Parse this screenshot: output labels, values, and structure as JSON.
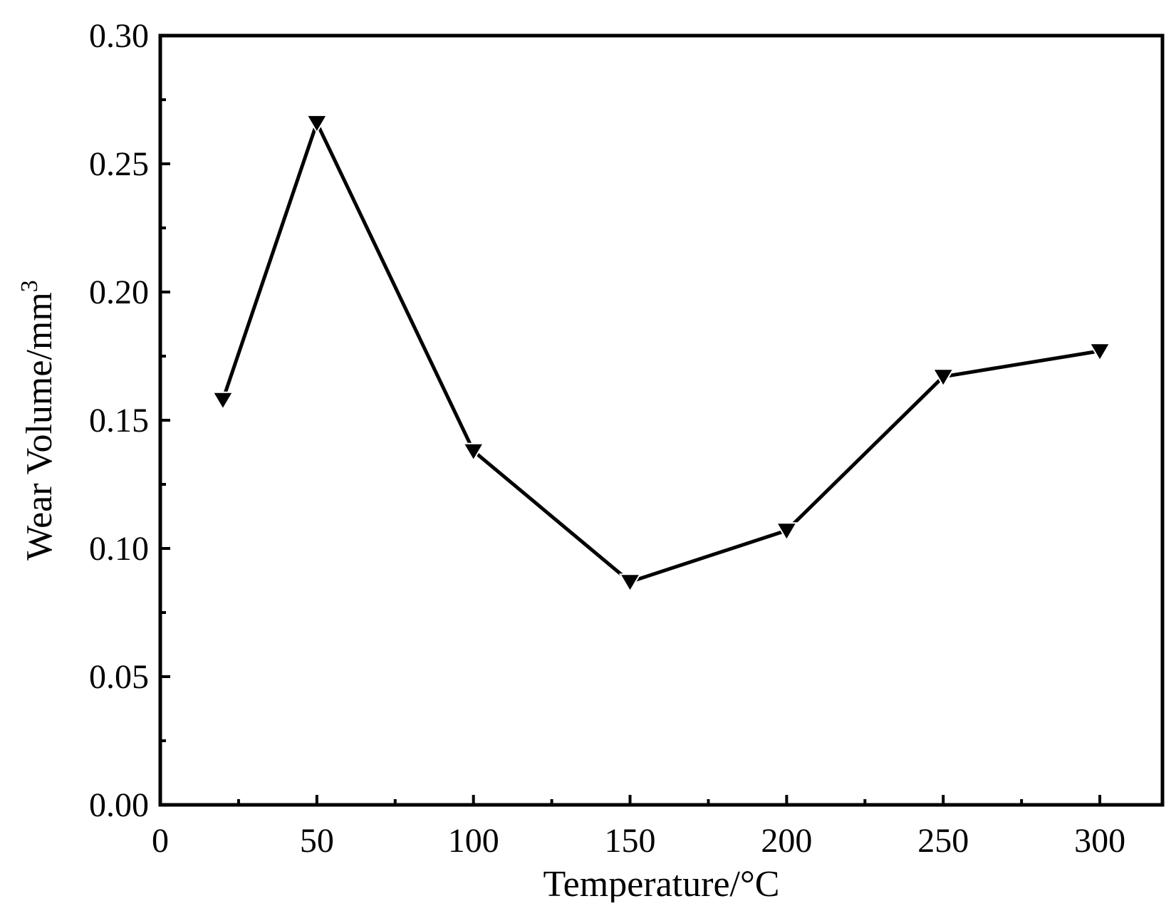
{
  "chart_data": {
    "type": "line",
    "title": "",
    "xlabel": "Temperature/°C",
    "ylabel": "Wear Volume/mm",
    "ylabel_superscript": "3",
    "xlim": [
      0,
      320
    ],
    "ylim": [
      0,
      0.3
    ],
    "x_ticks": [
      0,
      50,
      100,
      150,
      200,
      250,
      300
    ],
    "x_tick_labels": [
      "0",
      "50",
      "100",
      "150",
      "200",
      "250",
      "300"
    ],
    "y_ticks": [
      0,
      0.05,
      0.1,
      0.15,
      0.2,
      0.25,
      0.3
    ],
    "y_tick_labels": [
      "0.00",
      "0.05",
      "0.10",
      "0.15",
      "0.20",
      "0.25",
      "0.30"
    ],
    "grid": false,
    "marker": "down-triangle",
    "series": [
      {
        "x": [
          20,
          50,
          100,
          150,
          200,
          250,
          300
        ],
        "y": [
          0.158,
          0.266,
          0.138,
          0.087,
          0.107,
          0.167,
          0.177
        ],
        "color": "#000000"
      }
    ]
  }
}
